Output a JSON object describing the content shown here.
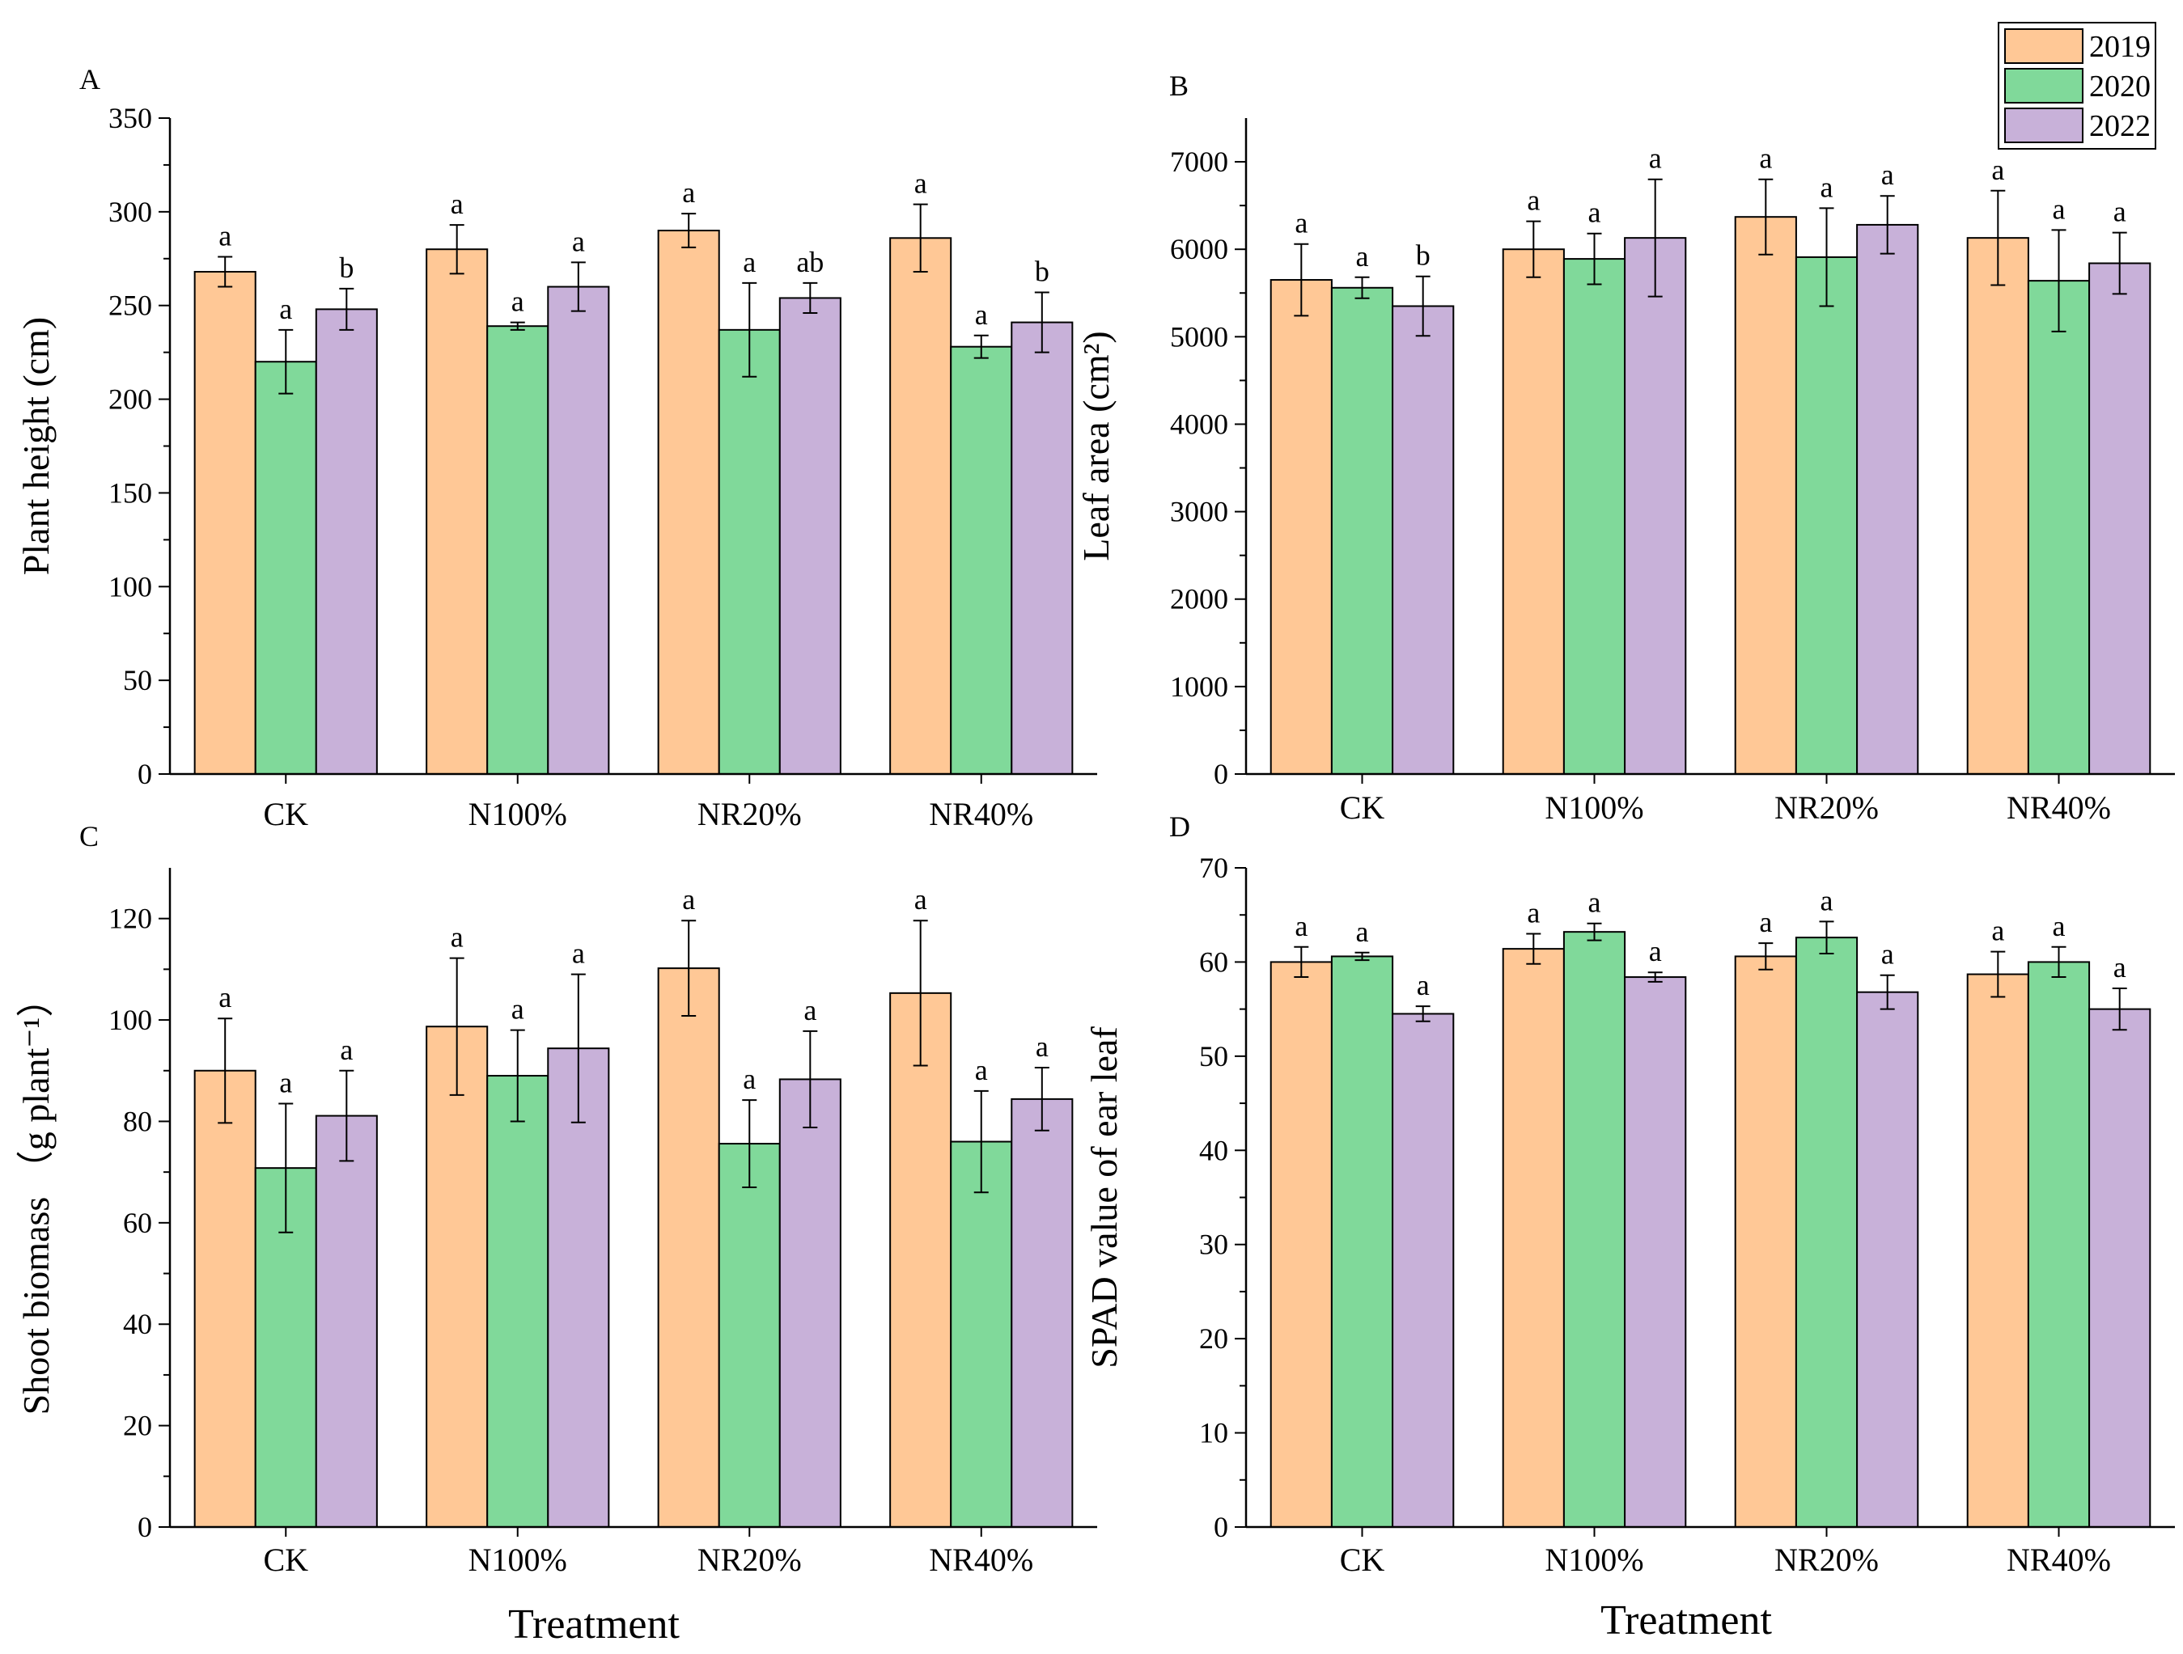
{
  "legend": {
    "items": [
      {
        "label": "2019",
        "color": "#FFC896"
      },
      {
        "label": "2020",
        "color": "#80D99A"
      },
      {
        "label": "2022",
        "color": "#C8B1D9"
      }
    ]
  },
  "x_title": "Treatment",
  "chart_data": [
    {
      "panel": "A",
      "type": "bar",
      "categories": [
        "CK",
        "N100%",
        "NR20%",
        "NR40%"
      ],
      "ylabel": "Plant height (cm)",
      "ylim": [
        0,
        350
      ],
      "yticks": [
        0,
        50,
        100,
        150,
        200,
        250,
        300,
        350
      ],
      "series": [
        {
          "name": "2019",
          "values": [
            268,
            280,
            290,
            286
          ],
          "errors": [
            8,
            13,
            9,
            18
          ],
          "letters": [
            "a",
            "a",
            "a",
            "a"
          ]
        },
        {
          "name": "2020",
          "values": [
            220,
            239,
            237,
            228
          ],
          "errors": [
            17,
            2,
            25,
            6
          ],
          "letters": [
            "a",
            "a",
            "a",
            "a"
          ]
        },
        {
          "name": "2022",
          "values": [
            248,
            260,
            254,
            241
          ],
          "errors": [
            11,
            13,
            8,
            16
          ],
          "letters": [
            "b",
            "a",
            "ab",
            "b"
          ]
        }
      ]
    },
    {
      "panel": "B",
      "type": "bar",
      "categories": [
        "CK",
        "N100%",
        "NR20%",
        "NR40%"
      ],
      "ylabel": "Leaf area (cm²)",
      "ylim": [
        0,
        7500
      ],
      "yticks": [
        0,
        1000,
        2000,
        3000,
        4000,
        5000,
        6000,
        7000
      ],
      "series": [
        {
          "name": "2019",
          "values": [
            5650,
            6000,
            6370,
            6130
          ],
          "errors": [
            410,
            320,
            430,
            540
          ],
          "letters": [
            "a",
            "a",
            "a",
            "a"
          ]
        },
        {
          "name": "2020",
          "values": [
            5560,
            5890,
            5910,
            5640
          ],
          "errors": [
            120,
            290,
            560,
            580
          ],
          "letters": [
            "a",
            "a",
            "a",
            "a"
          ]
        },
        {
          "name": "2022",
          "values": [
            5350,
            6130,
            6280,
            5840
          ],
          "errors": [
            340,
            670,
            330,
            350
          ],
          "letters": [
            "b",
            "a",
            "a",
            "a"
          ]
        }
      ]
    },
    {
      "panel": "C",
      "type": "bar",
      "categories": [
        "CK",
        "N100%",
        "NR20%",
        "NR40%"
      ],
      "ylabel": "Shoot biomass （g plant⁻¹）",
      "ylim": [
        0,
        130
      ],
      "yticks": [
        0,
        20,
        40,
        60,
        80,
        100,
        120
      ],
      "series": [
        {
          "name": "2019",
          "values": [
            90,
            98.7,
            110.2,
            105.3
          ],
          "errors": [
            10.3,
            13.5,
            9.4,
            14.3
          ],
          "letters": [
            "a",
            "a",
            "a",
            "a"
          ]
        },
        {
          "name": "2020",
          "values": [
            70.8,
            89,
            75.6,
            76
          ],
          "errors": [
            12.7,
            9,
            8.6,
            10
          ],
          "letters": [
            "a",
            "a",
            "a",
            "a"
          ]
        },
        {
          "name": "2022",
          "values": [
            81.1,
            94.4,
            88.3,
            84.4
          ],
          "errors": [
            8.9,
            14.6,
            9.5,
            6.2
          ],
          "letters": [
            "a",
            "a",
            "a",
            "a"
          ]
        }
      ]
    },
    {
      "panel": "D",
      "type": "bar",
      "categories": [
        "CK",
        "N100%",
        "NR20%",
        "NR40%"
      ],
      "ylabel": "SPAD value of ear leaf",
      "ylim": [
        0,
        70
      ],
      "yticks": [
        0,
        10,
        20,
        30,
        40,
        50,
        60,
        70
      ],
      "series": [
        {
          "name": "2019",
          "values": [
            60,
            61.4,
            60.6,
            58.7
          ],
          "errors": [
            1.6,
            1.6,
            1.4,
            2.4
          ],
          "letters": [
            "a",
            "a",
            "a",
            "a"
          ]
        },
        {
          "name": "2020",
          "values": [
            60.6,
            63.2,
            62.6,
            60
          ],
          "errors": [
            0.4,
            0.9,
            1.7,
            1.6
          ],
          "letters": [
            "a",
            "a",
            "a",
            "a"
          ]
        },
        {
          "name": "2022",
          "values": [
            54.5,
            58.4,
            56.8,
            55
          ],
          "errors": [
            0.8,
            0.5,
            1.8,
            2.2
          ],
          "letters": [
            "a",
            "a",
            "a",
            "a"
          ]
        }
      ]
    }
  ]
}
